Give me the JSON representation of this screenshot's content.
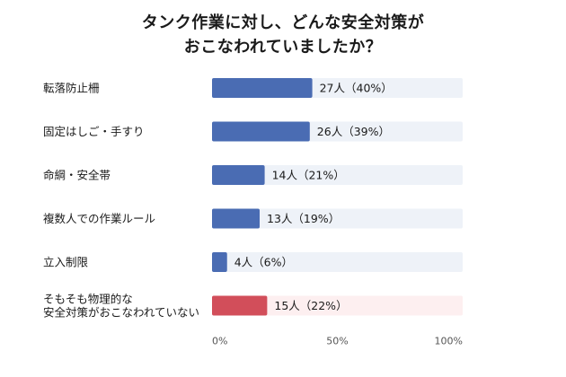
{
  "chart_data": {
    "type": "bar",
    "orientation": "horizontal",
    "title_lines": [
      "タンク作業に対し、どんな安全対策が",
      "おこなわれていましたか？"
    ],
    "categories": [
      [
        "転落防止柵"
      ],
      [
        "固定はしご・手すり"
      ],
      [
        "命綱・安全帯"
      ],
      [
        "複数人での作業ルール"
      ],
      [
        "立入制限"
      ],
      [
        "そもそも物理的な",
        "安全対策がおこなわれていない"
      ]
    ],
    "counts": [
      27,
      26,
      14,
      13,
      4,
      15
    ],
    "percents": [
      40,
      39,
      21,
      19,
      6,
      22
    ],
    "value_labels": [
      "27人（40%）",
      "26人（39%）",
      "14人（21%）",
      "13人（19%）",
      "4人（6%）",
      "15人（22%）"
    ],
    "xlim": [
      0,
      100
    ],
    "xticks": [
      "0%",
      "50%",
      "100%"
    ],
    "bar_color": "#4a6cb3",
    "highlight_color": "#d24e5a",
    "track_color": "#eef2f8",
    "highlight_track_color": "#fdeff0",
    "highlight_index": 5
  }
}
